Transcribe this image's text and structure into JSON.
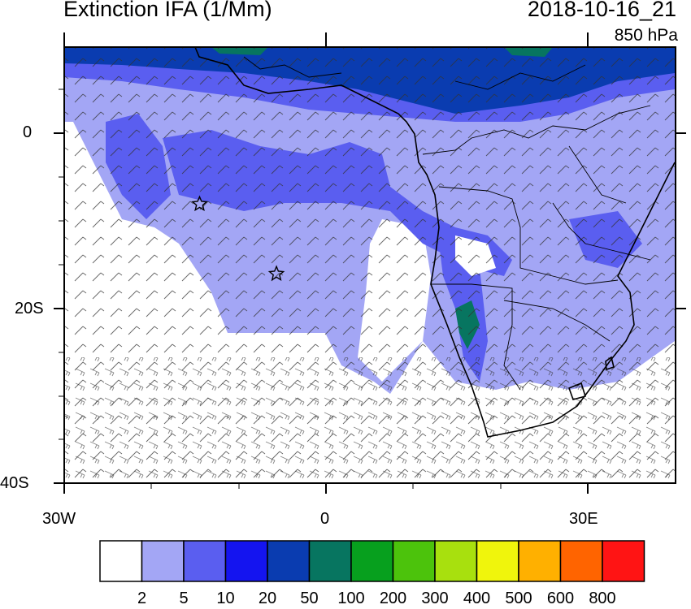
{
  "header": {
    "title": "Extinction IFA (1/Mm)",
    "datetime": "2018-10-16_21",
    "level": "850 hPa"
  },
  "axes": {
    "y_ticks": [
      "0",
      "20S",
      "40S"
    ],
    "x_ticks": [
      "30W",
      "0",
      "30E"
    ]
  },
  "colorbar": {
    "labels": [
      "2",
      "5",
      "10",
      "20",
      "50",
      "100",
      "200",
      "300",
      "400",
      "500",
      "600",
      "800"
    ],
    "colors": [
      "#ffffff",
      "#a3a6f5",
      "#5a5ef0",
      "#1414f0",
      "#0a3cb0",
      "#077560",
      "#07a01e",
      "#4cc30c",
      "#a8e00e",
      "#f0f50c",
      "#ffb000",
      "#ff6400",
      "#ff1414"
    ]
  },
  "map": {
    "extent": {
      "lon": [
        -30,
        40
      ],
      "lat": [
        -40,
        10
      ]
    },
    "markers": [
      {
        "name": "star",
        "lon": -14.5,
        "lat": -8
      },
      {
        "name": "star",
        "lon": -5.7,
        "lat": -16
      }
    ]
  }
}
